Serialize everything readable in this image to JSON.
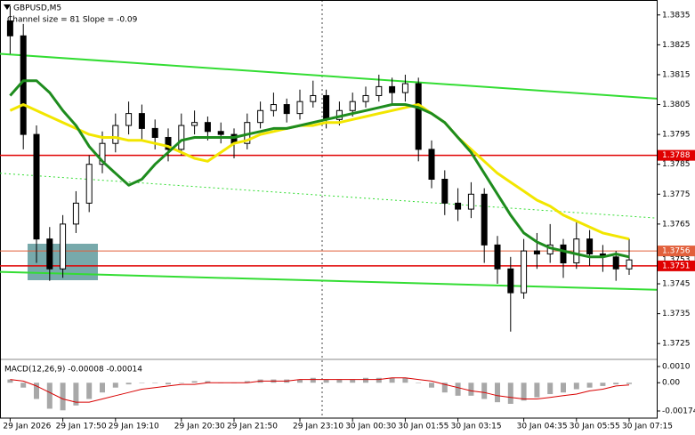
{
  "chart_data": [
    {
      "type": "candlestick",
      "title": "GBPUSD,M5",
      "subtitle": "Channel size = 81 Slope = -0.09",
      "categories": [
        "29 Jan 2026",
        null,
        null,
        null,
        "29 Jan 17:50",
        null,
        null,
        null,
        "29 Jan 19:10",
        null,
        null,
        null,
        null,
        "29 Jan 20:30",
        null,
        null,
        null,
        "29 Jan 21:50",
        null,
        null,
        null,
        null,
        "29 Jan 23:10",
        null,
        null,
        null,
        "30 Jan 00:30",
        null,
        null,
        null,
        "30 Jan 01:55",
        null,
        null,
        null,
        "30 Jan 03:15",
        null,
        null,
        null,
        null,
        "30 Jan 04:35",
        null,
        null,
        null,
        "30 Jan 05:55",
        null,
        null,
        null,
        "30 Jan 07:15"
      ],
      "open": [
        1.3833,
        1.3828,
        1.3795,
        1.376,
        1.375,
        1.3765,
        1.3772,
        1.3785,
        1.3792,
        1.3798,
        1.3802,
        1.3797,
        1.3794,
        1.379,
        1.3798,
        1.3799,
        1.3796,
        1.3795,
        1.3792,
        1.3799,
        1.3803,
        1.3805,
        1.3802,
        1.3806,
        1.3808,
        1.38,
        1.3803,
        1.3806,
        1.3808,
        1.3811,
        1.3809,
        1.3812,
        1.379,
        1.378,
        1.3772,
        1.377,
        1.3775,
        1.3758,
        1.375,
        1.3742,
        1.3756,
        1.3755,
        1.3758,
        1.3752,
        1.376,
        1.3755,
        1.3754,
        1.375
      ],
      "high": [
        1.3838,
        1.3832,
        1.3798,
        1.3764,
        1.3768,
        1.3776,
        1.3788,
        1.3796,
        1.3802,
        1.3806,
        1.3805,
        1.38,
        1.3797,
        1.3802,
        1.3803,
        1.3801,
        1.3799,
        1.3797,
        1.3802,
        1.3806,
        1.3809,
        1.3807,
        1.381,
        1.3813,
        1.381,
        1.3806,
        1.3809,
        1.3811,
        1.3815,
        1.3814,
        1.3815,
        1.3814,
        1.3793,
        1.3783,
        1.3777,
        1.3779,
        1.3777,
        1.3761,
        1.3754,
        1.376,
        1.3762,
        1.3765,
        1.376,
        1.3766,
        1.3763,
        1.3758,
        1.3756,
        1.376
      ],
      "low": [
        1.3822,
        1.379,
        1.3752,
        1.3746,
        1.3747,
        1.3762,
        1.3769,
        1.3782,
        1.3789,
        1.3795,
        1.3793,
        1.379,
        1.3786,
        1.3788,
        1.3795,
        1.3793,
        1.3792,
        1.3787,
        1.379,
        1.3797,
        1.3801,
        1.3799,
        1.38,
        1.3804,
        1.3797,
        1.3798,
        1.3801,
        1.3804,
        1.3806,
        1.3805,
        1.3806,
        1.3786,
        1.3777,
        1.3768,
        1.3766,
        1.3767,
        1.3752,
        1.3745,
        1.3729,
        1.374,
        1.375,
        1.3752,
        1.3747,
        1.375,
        1.3751,
        1.3749,
        1.3746,
        1.3748
      ],
      "close": [
        1.3828,
        1.3795,
        1.376,
        1.375,
        1.3765,
        1.3772,
        1.3785,
        1.3792,
        1.3798,
        1.3802,
        1.3797,
        1.3794,
        1.379,
        1.3798,
        1.3799,
        1.3796,
        1.3795,
        1.3792,
        1.3799,
        1.3803,
        1.3805,
        1.3802,
        1.3806,
        1.3808,
        1.38,
        1.3803,
        1.3806,
        1.3808,
        1.3811,
        1.3809,
        1.3812,
        1.379,
        1.378,
        1.3772,
        1.377,
        1.3775,
        1.3758,
        1.375,
        1.3742,
        1.3756,
        1.3755,
        1.3758,
        1.3752,
        1.376,
        1.3755,
        1.3754,
        1.375,
        1.3753
      ],
      "series": [
        {
          "color": "#f2e600",
          "values": [
            1.3803,
            1.3805,
            1.3803,
            1.3801,
            1.3799,
            1.3797,
            1.3795,
            1.3794,
            1.3794,
            1.3793,
            1.3793,
            1.3792,
            1.3791,
            1.3789,
            1.3787,
            1.3786,
            1.3789,
            1.3792,
            1.3793,
            1.3795,
            1.3796,
            1.3797,
            1.3798,
            1.3798,
            1.3799,
            1.3799,
            1.38,
            1.3801,
            1.3802,
            1.3803,
            1.3804,
            1.3805,
            1.3802,
            1.3799,
            1.3794,
            1.379,
            1.3786,
            1.3782,
            1.3779,
            1.3776,
            1.3773,
            1.3771,
            1.3768,
            1.3766,
            1.3764,
            1.3762,
            1.3761,
            1.376
          ]
        },
        {
          "color": "#1e8c1e",
          "values": [
            1.3808,
            1.3813,
            1.3813,
            1.3809,
            1.3803,
            1.3798,
            1.3791,
            1.3786,
            1.3782,
            1.3778,
            1.378,
            1.3785,
            1.3789,
            1.3793,
            1.3794,
            1.3794,
            1.3794,
            1.3794,
            1.3795,
            1.3796,
            1.3797,
            1.3797,
            1.3798,
            1.3799,
            1.38,
            1.3801,
            1.3802,
            1.3803,
            1.3804,
            1.3805,
            1.3805,
            1.3804,
            1.3802,
            1.3799,
            1.3794,
            1.3789,
            1.3782,
            1.3775,
            1.3768,
            1.3762,
            1.3759,
            1.3757,
            1.3756,
            1.3755,
            1.3754,
            1.3754,
            1.3755,
            1.3754
          ]
        }
      ],
      "channel": {
        "color": "#33dd33",
        "upper": [
          1.3822,
          1.3807
        ],
        "middle": [
          1.3782,
          1.3767
        ],
        "lower": [
          1.3749,
          1.3743
        ]
      },
      "levels": [
        {
          "value": 1.3788,
          "color": "#e00000"
        },
        {
          "value": 1.3756,
          "color": "#e2603c"
        },
        {
          "value": 1.3751,
          "color": "#e00000"
        }
      ],
      "current_price": 1.3753,
      "ylim": [
        1.372,
        1.384
      ],
      "yticks": [
        1.3835,
        1.3825,
        1.3815,
        1.3805,
        1.3795,
        1.3785,
        1.3775,
        1.3765,
        1.3745,
        1.3735,
        1.3725
      ]
    },
    {
      "type": "macd",
      "title": "MACD(12,26,9) -0.00008 -0.00014",
      "series": [
        {
          "color": "#a8a8a8",
          "values": [
            0.0002,
            -0.0003,
            -0.001,
            -0.0016,
            -0.0017,
            -0.0014,
            -0.001,
            -0.0006,
            -0.0003,
            -0.0001,
            0,
            0,
            -0.0001,
            0,
            0.0001,
            0.0001,
            0,
            0,
            0.0001,
            0.0002,
            0.0002,
            0.0002,
            0.0002,
            0.0003,
            0.0002,
            0.0002,
            0.0002,
            0.0003,
            0.0003,
            0.0003,
            0.0003,
            0,
            -0.0003,
            -0.0006,
            -0.0008,
            -0.0008,
            -0.001,
            -0.0012,
            -0.0013,
            -0.0011,
            -0.0009,
            -0.0007,
            -0.0006,
            -0.0004,
            -0.0003,
            -0.0002,
            -0.0001,
            -8e-05
          ]
        },
        {
          "color": "#d80000",
          "values": [
            0.0002,
            0.0001,
            -0.0002,
            -0.0006,
            -0.001,
            -0.0012,
            -0.0012,
            -0.001,
            -0.0008,
            -0.0006,
            -0.0004,
            -0.0003,
            -0.0002,
            -0.0001,
            -0.0001,
            0,
            0,
            0,
            0,
            0.0001,
            0.0001,
            0.0001,
            0.0002,
            0.0002,
            0.0002,
            0.0002,
            0.0002,
            0.0002,
            0.0002,
            0.0003,
            0.0003,
            0.0002,
            0.0001,
            -0.0001,
            -0.0003,
            -0.0005,
            -0.0006,
            -0.0008,
            -0.0009,
            -0.001,
            -0.001,
            -0.0009,
            -0.0008,
            -0.0007,
            -0.0005,
            -0.0004,
            -0.0002,
            -0.00014
          ]
        }
      ],
      "ylim": [
        -0.00174,
        0.001
      ],
      "yticks": [
        {
          "value": 0.001,
          "label": "0.0010"
        },
        {
          "value": 0,
          "label": "0.00"
        },
        -0.00174
      ]
    }
  ]
}
